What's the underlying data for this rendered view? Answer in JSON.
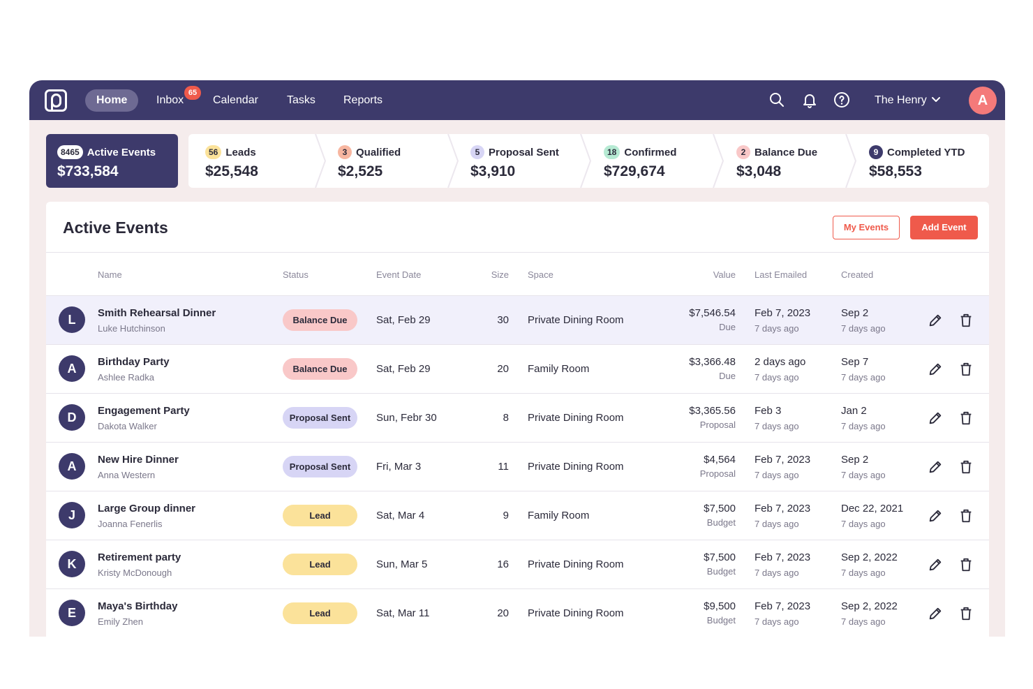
{
  "nav": {
    "items": [
      {
        "label": "Home",
        "active": true
      },
      {
        "label": "Inbox",
        "badge": "65"
      },
      {
        "label": "Calendar"
      },
      {
        "label": "Tasks"
      },
      {
        "label": "Reports"
      }
    ],
    "icons": [
      "search-icon",
      "bell-icon",
      "help-icon"
    ],
    "venue": "The Henry",
    "avatar_initial": "A"
  },
  "pipeline": {
    "active": {
      "count": "8465",
      "label": "Active Events",
      "amount": "$733,584"
    },
    "stages": [
      {
        "count": "56",
        "label": "Leads",
        "amount": "$25,548",
        "color": "#fbe29a"
      },
      {
        "count": "3",
        "label": "Qualified",
        "amount": "$2,525",
        "color": "#f7b6a0"
      },
      {
        "count": "5",
        "label": "Proposal Sent",
        "amount": "$3,910",
        "color": "#d7d5f5"
      },
      {
        "count": "18",
        "label": "Confirmed",
        "amount": "$729,674",
        "color": "#b6ead3"
      },
      {
        "count": "2",
        "label": "Balance Due",
        "amount": "$3,048",
        "color": "#f9c8c8"
      },
      {
        "count": "9",
        "label": "Completed YTD",
        "amount": "$58,553",
        "color": "#3d3a6b"
      }
    ]
  },
  "panel": {
    "title": "Active Events",
    "my_events_label": "My Events",
    "add_event_label": "Add Event"
  },
  "table": {
    "headers": [
      "Name",
      "Status",
      "Event Date",
      "Size",
      "Space",
      "Value",
      "Last Emailed",
      "Created"
    ],
    "rows": [
      {
        "initial": "L",
        "name": "Smith Rehearsal Dinner",
        "contact": "Luke Hutchinson",
        "status": "Balance Due",
        "date": "Sat, Feb 29",
        "size": "30",
        "space": "Private Dining Room",
        "value": "$7,546.54",
        "value_note": "Due",
        "emailed": "Feb 7, 2023",
        "emailed_ago": "7 days ago",
        "created": "Sep 2",
        "created_ago": "7 days ago"
      },
      {
        "initial": "A",
        "name": "Birthday Party",
        "contact": "Ashlee Radka",
        "status": "Balance Due",
        "date": "Sat, Feb 29",
        "size": "20",
        "space": "Family Room",
        "value": "$3,366.48",
        "value_note": "Due",
        "emailed": "2 days ago",
        "emailed_ago": "7 days ago",
        "created": "Sep 7",
        "created_ago": "7 days ago"
      },
      {
        "initial": "D",
        "name": "Engagement Party",
        "contact": "Dakota Walker",
        "status": "Proposal Sent",
        "date": "Sun, Febr 30",
        "size": "8",
        "space": "Private Dining Room",
        "value": "$3,365.56",
        "value_note": "Proposal",
        "emailed": "Feb 3",
        "emailed_ago": "7 days ago",
        "created": "Jan 2",
        "created_ago": "7 days ago"
      },
      {
        "initial": "A",
        "name": "New Hire Dinner",
        "contact": "Anna Western",
        "status": "Proposal Sent",
        "date": "Fri, Mar 3",
        "size": "11",
        "space": "Private Dining Room",
        "value": "$4,564",
        "value_note": "Proposal",
        "emailed": "Feb 7, 2023",
        "emailed_ago": "7 days ago",
        "created": "Sep 2",
        "created_ago": "7 days ago"
      },
      {
        "initial": "J",
        "name": "Large Group dinner",
        "contact": "Joanna Fenerlis",
        "status": "Lead",
        "date": "Sat, Mar 4",
        "size": "9",
        "space": "Family Room",
        "value": "$7,500",
        "value_note": "Budget",
        "emailed": "Feb 7, 2023",
        "emailed_ago": "7 days ago",
        "created": "Dec 22, 2021",
        "created_ago": "7 days ago"
      },
      {
        "initial": "K",
        "name": "Retirement party",
        "contact": "Kristy McDonough",
        "status": "Lead",
        "date": "Sun, Mar 5",
        "size": "16",
        "space": "Private Dining Room",
        "value": "$7,500",
        "value_note": "Budget",
        "emailed": "Feb 7, 2023",
        "emailed_ago": "7 days ago",
        "created": "Sep 2, 2022",
        "created_ago": "7 days ago"
      },
      {
        "initial": "E",
        "name": "Maya's Birthday",
        "contact": "Emily Zhen",
        "status": "Lead",
        "date": "Sat, Mar 11",
        "size": "20",
        "space": "Private Dining Room",
        "value": "$9,500",
        "value_note": "Budget",
        "emailed": "Feb 7, 2023",
        "emailed_ago": "7 days ago",
        "created": "Sep 2, 2022",
        "created_ago": "7 days ago"
      }
    ]
  },
  "colors": {
    "brand": "#3d3a6b",
    "accent": "#ef5a4b",
    "highlight_row": "#f1f0fb"
  }
}
